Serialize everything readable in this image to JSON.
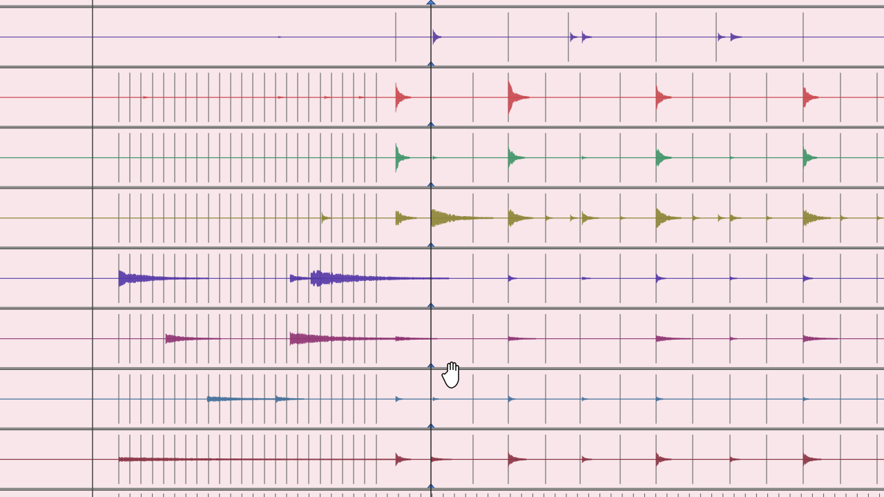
{
  "tracks": [
    {
      "color": "#5b3fa0"
    },
    {
      "color": "#c9484e"
    },
    {
      "color": "#3f9468"
    },
    {
      "color": "#8c8436"
    },
    {
      "color": "#5438a8"
    },
    {
      "color": "#8e3372"
    },
    {
      "color": "#44709a"
    },
    {
      "color": "#8a3444"
    }
  ]
}
